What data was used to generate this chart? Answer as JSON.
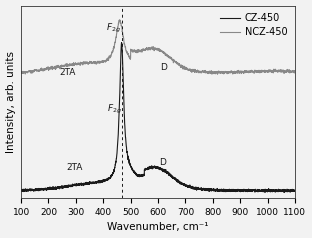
{
  "xlabel": "Wavenumber, cm⁻¹",
  "ylabel": "Intensity, arb. units",
  "xlim": [
    100,
    1100
  ],
  "legend": [
    "CZ-450",
    "NCZ-450"
  ],
  "legend_colors": [
    "#1a1a1a",
    "#888888"
  ],
  "dashed_line_x": 467,
  "xticks": [
    100,
    200,
    300,
    400,
    500,
    600,
    700,
    800,
    900,
    1000,
    1100
  ],
  "background_color": "#f0f0f0"
}
